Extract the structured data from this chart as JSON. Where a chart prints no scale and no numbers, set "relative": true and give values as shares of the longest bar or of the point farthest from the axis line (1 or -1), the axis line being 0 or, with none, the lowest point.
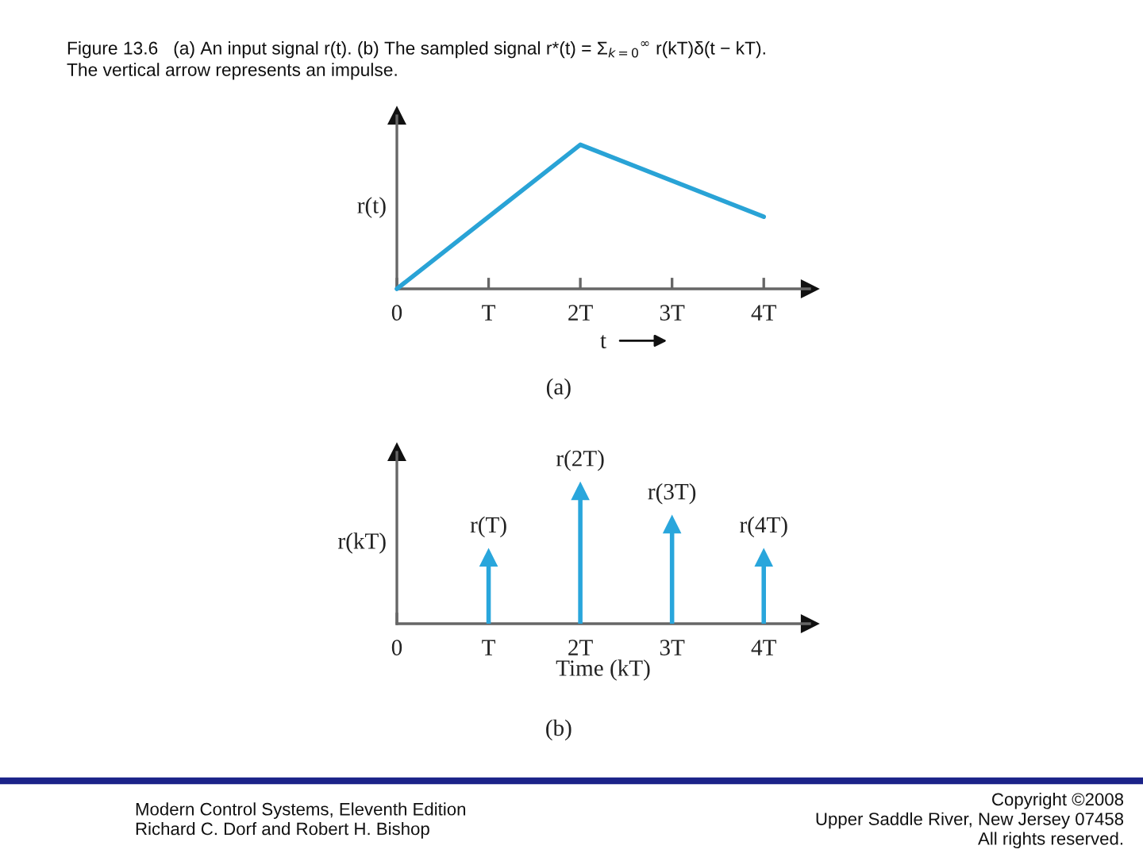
{
  "chart_data": [
    {
      "type": "line",
      "title": "Figure 13.6   (a) An input signal r(t). (b) The sampled signal r*(t) = Σ$_{k=0}$$^{∞}$ r(kT)δ(t − kT).\nThe vertical arrow represents an impulse.",
      "xlabel": "t",
      "ylabel": "r(t)",
      "annotations": [
        "(a)"
      ],
      "relative": true,
      "x": [
        0,
        2,
        4
      ],
      "series": [
        {
          "color": "#29a3d6",
          "values": [
            0,
            1,
            0.5
          ]
        }
      ],
      "xlim": [
        0,
        4.5
      ],
      "xticks": [
        0,
        {
          "value": 1,
          "label": "T"
        },
        {
          "value": 2,
          "label": "2T"
        },
        {
          "value": 3,
          "label": "3T"
        },
        {
          "value": 4,
          "label": "4T"
        }
      ],
      "tick_labels": "x"
    },
    {
      "type": "lollipop",
      "xlabel": "Time (kT)",
      "ylabel": "r(kT)",
      "annotations": [
        {
          "text": "r(T)",
          "x": 1,
          "y": 0.5
        },
        {
          "text": "r(2T)",
          "x": 2,
          "y": 1
        },
        {
          "text": "r(3T)",
          "x": 3,
          "y": 0.75
        },
        {
          "text": "r(4T)",
          "x": 4,
          "y": 0.5
        },
        "(b)",
        "Modern Control Systems, Eleventh Edition\nRichard C. Dorf and Robert H. Bishop",
        "Copyright ©2008\nUpper Saddle River, New Jersey 07458\nAll rights reserved."
      ],
      "relative": true,
      "x": [
        1,
        2,
        3,
        4
      ],
      "values": [
        0.5,
        1,
        0.75,
        0.5
      ],
      "color": "#29a6dc",
      "marker": "triangle",
      "xlim": [
        0,
        4.5
      ],
      "xticks": [
        0,
        {
          "value": 1,
          "label": "T"
        },
        {
          "value": 2,
          "label": "2T"
        },
        {
          "value": 3,
          "label": "3T"
        },
        {
          "value": 4,
          "label": "4T"
        }
      ],
      "tick_labels": "x"
    }
  ]
}
